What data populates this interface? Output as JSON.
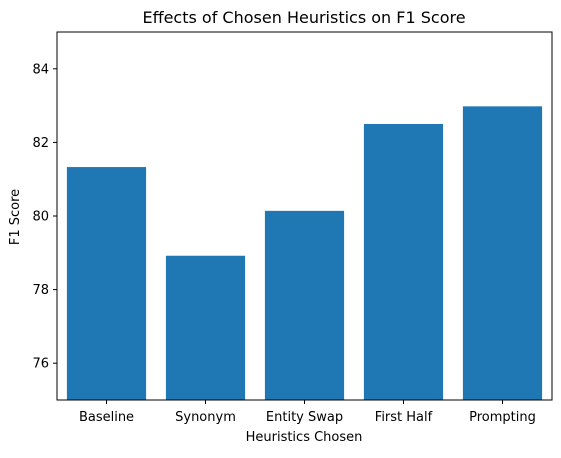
{
  "chart_data": {
    "type": "bar",
    "title": "Effects of Chosen Heuristics on F1 Score",
    "xlabel": "Heuristics Chosen",
    "ylabel": "F1 Score",
    "categories": [
      "Baseline",
      "Synonym",
      "Entity Swap",
      "First Half",
      "Prompting"
    ],
    "values": [
      81.33,
      78.92,
      80.14,
      82.5,
      82.98
    ],
    "ylim": [
      75,
      85
    ],
    "yticks": [
      76,
      78,
      80,
      82,
      84
    ],
    "bar_color": "#1f77b4",
    "grid": false,
    "legend": "none"
  }
}
